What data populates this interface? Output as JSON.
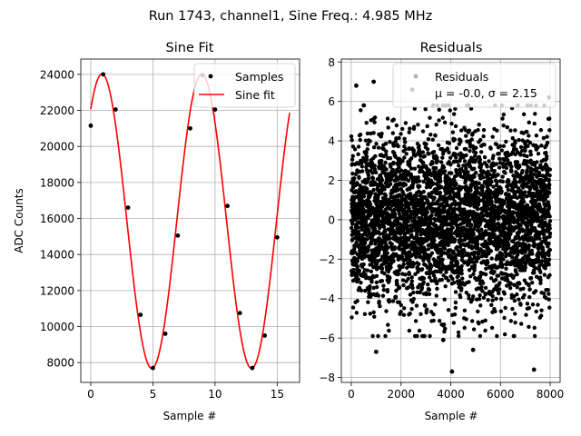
{
  "suptitle": "Run 1743, channel1, Sine Freq.: 4.985 MHz",
  "chart_data": [
    {
      "type": "scatter+line",
      "title": "Sine Fit",
      "xlabel": "Sample #",
      "ylabel": "ADC Counts",
      "xlim": [
        -0.8,
        16.8
      ],
      "ylim": [
        6900,
        24850
      ],
      "xticks": [
        0,
        5,
        10,
        15
      ],
      "yticks": [
        8000,
        10000,
        12000,
        14000,
        16000,
        18000,
        20000,
        22000,
        24000
      ],
      "grid": true,
      "legend_position": "top-right",
      "legend": [
        "Samples",
        "Sine fit"
      ],
      "samples": {
        "name": "Samples",
        "x": [
          0,
          1,
          2,
          3,
          4,
          5,
          6,
          7,
          8,
          9,
          10,
          11,
          12,
          13,
          14,
          15
        ],
        "y": [
          21150,
          24000,
          22050,
          16600,
          10650,
          7700,
          9600,
          15050,
          21000,
          23950,
          22050,
          16700,
          10750,
          7700,
          9500,
          14950
        ],
        "color": "#000000"
      },
      "fit": {
        "name": "Sine fit",
        "model": "offset + amplitude * sin(2*pi*frequency*x + phase)",
        "offset": 15850,
        "amplitude": 8170,
        "frequency": 0.12464,
        "phase": 0.863,
        "x_range": [
          0,
          16
        ],
        "color": "#ff0000"
      }
    },
    {
      "type": "scatter",
      "title": "Residuals",
      "xlabel": "Sample #",
      "ylabel": "",
      "xlim": [
        -400,
        8400
      ],
      "ylim": [
        -8.25,
        8.15
      ],
      "xticks": [
        0,
        2000,
        4000,
        6000,
        8000
      ],
      "yticks": [
        -8,
        -6,
        -4,
        -2,
        0,
        2,
        4,
        6,
        8
      ],
      "grid": true,
      "legend_position": "top-right",
      "legend": [
        "Residuals",
        "μ = -0.0, σ = 2.15"
      ],
      "series": {
        "name": "Residuals",
        "n_points": 8000,
        "x_range": [
          0,
          7999
        ],
        "mean": -0.0,
        "std": 2.15,
        "color": "#000000",
        "notable_outliers": [
          {
            "x": 900,
            "y": 7.0
          },
          {
            "x": 2450,
            "y": 6.6
          },
          {
            "x": 1000,
            "y": -6.7
          },
          {
            "x": 3700,
            "y": -6.1
          },
          {
            "x": 4050,
            "y": -7.7
          },
          {
            "x": 4900,
            "y": -6.6
          },
          {
            "x": 7350,
            "y": -7.6
          },
          {
            "x": 200,
            "y": 6.8
          },
          {
            "x": 7950,
            "y": 6.2
          }
        ]
      }
    }
  ]
}
